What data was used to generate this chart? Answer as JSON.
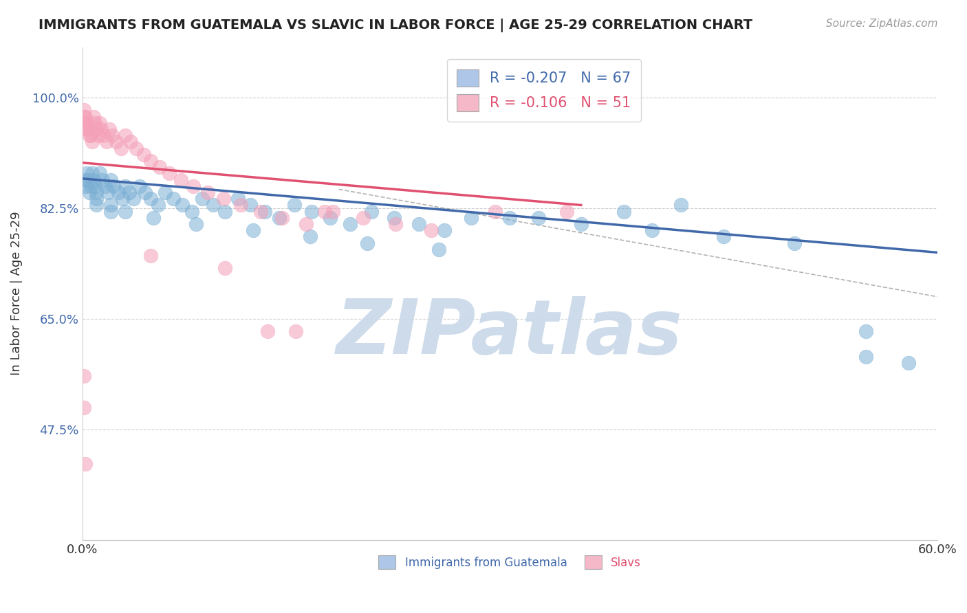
{
  "title": "IMMIGRANTS FROM GUATEMALA VS SLAVIC IN LABOR FORCE | AGE 25-29 CORRELATION CHART",
  "source": "Source: ZipAtlas.com",
  "ylabel": "In Labor Force | Age 25-29",
  "xlim": [
    0.0,
    0.6
  ],
  "ylim": [
    0.3,
    1.08
  ],
  "xticks": [
    0.0,
    0.1,
    0.2,
    0.3,
    0.4,
    0.5,
    0.6
  ],
  "xticklabels": [
    "0.0%",
    "",
    "",
    "",
    "",
    "",
    "60.0%"
  ],
  "yticks": [
    0.475,
    0.65,
    0.825,
    1.0
  ],
  "yticklabels": [
    "47.5%",
    "65.0%",
    "82.5%",
    "100.0%"
  ],
  "legend1_label": "R = -0.207   N = 67",
  "legend2_label": "R = -0.106   N = 51",
  "legend1_color": "#aec6e8",
  "legend2_color": "#f4b8c8",
  "blue_color": "#7bafd4",
  "pink_color": "#f4a0b8",
  "blue_line_color": "#4169aa",
  "pink_line_color": "#e05070",
  "watermark": "ZIPatlas",
  "watermark_color": "#c8d8e8",
  "blue_scatter_x": [
    0.001,
    0.002,
    0.003,
    0.004,
    0.005,
    0.006,
    0.007,
    0.008,
    0.009,
    0.01,
    0.012,
    0.014,
    0.016,
    0.018,
    0.02,
    0.022,
    0.025,
    0.028,
    0.03,
    0.033,
    0.036,
    0.04,
    0.044,
    0.048,
    0.053,
    0.058,
    0.064,
    0.07,
    0.077,
    0.084,
    0.092,
    0.1,
    0.109,
    0.118,
    0.128,
    0.138,
    0.149,
    0.161,
    0.174,
    0.188,
    0.203,
    0.219,
    0.236,
    0.254,
    0.273,
    0.01,
    0.01,
    0.02,
    0.02,
    0.03,
    0.05,
    0.08,
    0.12,
    0.16,
    0.2,
    0.25,
    0.3,
    0.35,
    0.4,
    0.45,
    0.5,
    0.55,
    0.55,
    0.58,
    0.42,
    0.38,
    0.32
  ],
  "blue_scatter_y": [
    0.87,
    0.86,
    0.88,
    0.87,
    0.85,
    0.86,
    0.88,
    0.87,
    0.86,
    0.85,
    0.88,
    0.87,
    0.86,
    0.85,
    0.87,
    0.86,
    0.85,
    0.84,
    0.86,
    0.85,
    0.84,
    0.86,
    0.85,
    0.84,
    0.83,
    0.85,
    0.84,
    0.83,
    0.82,
    0.84,
    0.83,
    0.82,
    0.84,
    0.83,
    0.82,
    0.81,
    0.83,
    0.82,
    0.81,
    0.8,
    0.82,
    0.81,
    0.8,
    0.79,
    0.81,
    0.84,
    0.83,
    0.83,
    0.82,
    0.82,
    0.81,
    0.8,
    0.79,
    0.78,
    0.77,
    0.76,
    0.81,
    0.8,
    0.79,
    0.78,
    0.77,
    0.63,
    0.59,
    0.58,
    0.83,
    0.82,
    0.81
  ],
  "pink_scatter_x": [
    0.001,
    0.001,
    0.002,
    0.002,
    0.003,
    0.003,
    0.004,
    0.005,
    0.006,
    0.007,
    0.008,
    0.009,
    0.01,
    0.011,
    0.012,
    0.013,
    0.015,
    0.017,
    0.019,
    0.021,
    0.024,
    0.027,
    0.03,
    0.034,
    0.038,
    0.043,
    0.048,
    0.054,
    0.061,
    0.069,
    0.078,
    0.088,
    0.099,
    0.111,
    0.125,
    0.14,
    0.157,
    0.176,
    0.197,
    0.22,
    0.245,
    0.048,
    0.1,
    0.15,
    0.29,
    0.34,
    0.001,
    0.001,
    0.002,
    0.13,
    0.17
  ],
  "pink_scatter_y": [
    0.98,
    0.97,
    0.97,
    0.96,
    0.96,
    0.95,
    0.95,
    0.94,
    0.94,
    0.93,
    0.97,
    0.96,
    0.95,
    0.94,
    0.96,
    0.95,
    0.94,
    0.93,
    0.95,
    0.94,
    0.93,
    0.92,
    0.94,
    0.93,
    0.92,
    0.91,
    0.9,
    0.89,
    0.88,
    0.87,
    0.86,
    0.85,
    0.84,
    0.83,
    0.82,
    0.81,
    0.8,
    0.82,
    0.81,
    0.8,
    0.79,
    0.75,
    0.73,
    0.63,
    0.82,
    0.82,
    0.56,
    0.51,
    0.42,
    0.63,
    0.82
  ],
  "blue_line": [
    0.872,
    0.755
  ],
  "pink_line": [
    0.897,
    0.83
  ],
  "dashed_line_x": [
    0.18,
    0.6
  ],
  "dashed_line_y": [
    0.855,
    0.685
  ]
}
